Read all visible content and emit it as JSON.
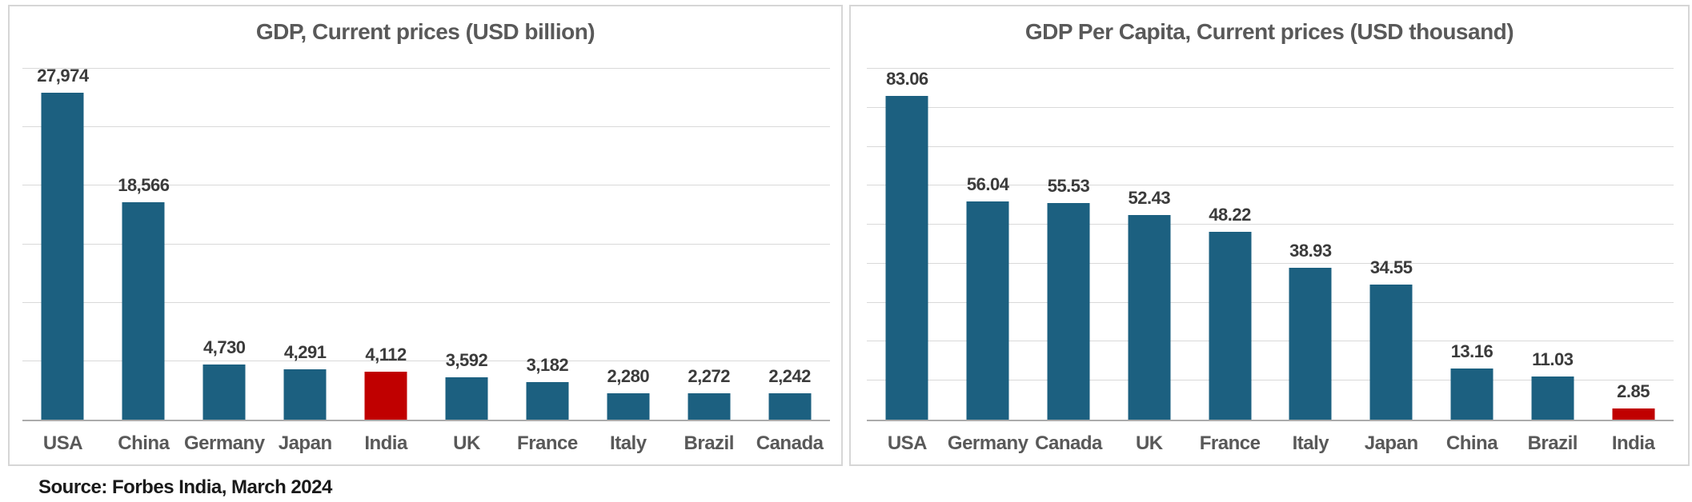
{
  "source_note": "Source: Forbes India, March 2024",
  "colors": {
    "bar": "#1c6080",
    "highlight": "#c00000",
    "gridline": "#d9d9d9",
    "axis": "#ababab",
    "title_text": "#595959",
    "value_text": "#3b3b3b",
    "category_text": "#595959",
    "panel_border": "#d6d6d6",
    "background": "#ffffff"
  },
  "chart_data": [
    {
      "type": "bar",
      "title": "GDP, Current prices (USD billion)",
      "categories": [
        "USA",
        "China",
        "Germany",
        "Japan",
        "India",
        "UK",
        "France",
        "Italy",
        "Brazil",
        "Canada"
      ],
      "values": [
        27974,
        18566,
        4730,
        4291,
        4112,
        3592,
        3182,
        2280,
        2272,
        2242
      ],
      "value_labels": [
        "27,974",
        "18,566",
        "4,730",
        "4,291",
        "4,112",
        "3,592",
        "3,182",
        "2,280",
        "2,272",
        "2,242"
      ],
      "highlighted_category": "India",
      "xlabel": "",
      "ylabel": "",
      "ylim": [
        0,
        30000
      ],
      "grid_step": 5000,
      "grid": true,
      "legend": false,
      "data_labels": true
    },
    {
      "type": "bar",
      "title": "GDP Per Capita, Current prices (USD thousand)",
      "categories": [
        "USA",
        "Germany",
        "Canada",
        "UK",
        "France",
        "Italy",
        "Japan",
        "China",
        "Brazil",
        "India"
      ],
      "values": [
        83.06,
        56.04,
        55.53,
        52.43,
        48.22,
        38.93,
        34.55,
        13.16,
        11.03,
        2.85
      ],
      "value_labels": [
        "83.06",
        "56.04",
        "55.53",
        "52.43",
        "48.22",
        "38.93",
        "34.55",
        "13.16",
        "11.03",
        "2.85"
      ],
      "highlighted_category": "India",
      "xlabel": "",
      "ylabel": "",
      "ylim": [
        0,
        90
      ],
      "grid_step": 10,
      "grid": true,
      "legend": false,
      "data_labels": true
    }
  ]
}
